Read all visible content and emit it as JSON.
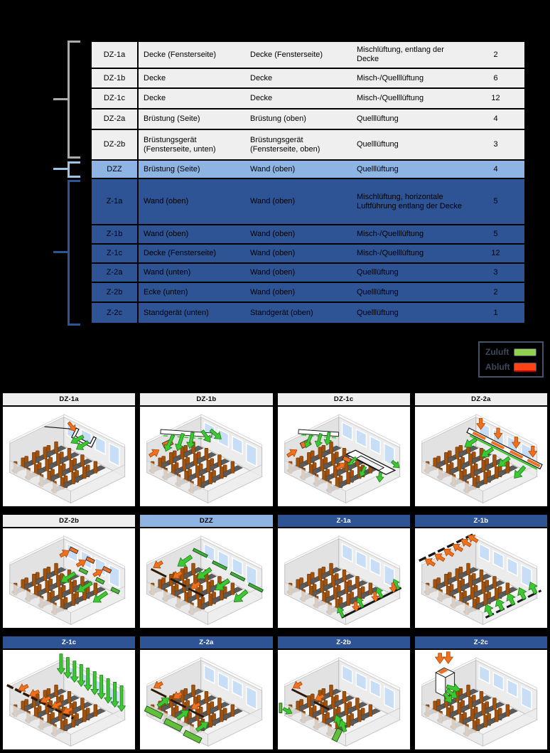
{
  "table": {
    "rows": [
      {
        "code": "DZ-1a",
        "col2": "Decke (Fensterseite)",
        "col3": "Decke (Fensterseite)",
        "col4": "Mischlüftung, entlang der Decke",
        "count": "2",
        "style": "gray"
      },
      {
        "code": "DZ-1b",
        "col2": "Decke",
        "col3": "Decke",
        "col4": "Misch-/Quelllüftung",
        "count": "6",
        "style": "gray"
      },
      {
        "code": "DZ-1c",
        "col2": "Decke",
        "col3": "Decke",
        "col4": "Misch-/Quelllüftung",
        "count": "12",
        "style": "gray"
      },
      {
        "code": "DZ-2a",
        "col2": "Brüstung (Seite)",
        "col3": "Brüstung (oben)",
        "col4": "Quelllüftung",
        "count": "4",
        "style": "gray"
      },
      {
        "code": "DZ-2b",
        "col2": "Brüstungsgerät (Fensterseite, unten)",
        "col3": "Brüstungsgerät (Fensterseite, oben)",
        "col4": "Quelllüftung",
        "count": "3",
        "style": "gray"
      },
      {
        "code": "DZZ",
        "col2": "Brüstung (Seite)",
        "col3": "Wand (oben)",
        "col4": "Quelllüftung",
        "count": "4",
        "style": "lightblue"
      },
      {
        "code": "Z-1a",
        "col2": "Wand (oben)",
        "col3": "Wand (oben)",
        "col4": "Mischlüftung, horizontale Luftführung entlang der Decke",
        "count": "5",
        "style": "blue"
      },
      {
        "code": "Z-1b",
        "col2": "Wand (oben)",
        "col3": "Wand (oben)",
        "col4": "Misch-/Quelllüftung",
        "count": "5",
        "style": "blue"
      },
      {
        "code": "Z-1c",
        "col2": "Decke (Fensterseite)",
        "col3": "Wand (oben)",
        "col4": "Misch-/Quelllüftung",
        "count": "12",
        "style": "blue"
      },
      {
        "code": "Z-2a",
        "col2": "Wand (unten)",
        "col3": "Wand (oben)",
        "col4": "Quelllüftung",
        "count": "3",
        "style": "blue"
      },
      {
        "code": "Z-2b",
        "col2": "Ecke (unten)",
        "col3": "Wand (oben)",
        "col4": "Quelllüftung",
        "count": "2",
        "style": "blue"
      },
      {
        "code": "Z-2c",
        "col2": "Standgerät (unten)",
        "col3": "Standgerät (oben)",
        "col4": "Quelllüftung",
        "count": "1",
        "style": "blue"
      }
    ]
  },
  "legend": {
    "supply_label": "Zuluft",
    "extract_label": "Abluft",
    "supply_color": "#92D050",
    "extract_color": "#FF4313"
  },
  "grid": {
    "cells": [
      {
        "code": "DZ-1a",
        "style": "gray"
      },
      {
        "code": "DZ-1b",
        "style": "gray"
      },
      {
        "code": "DZ-1c",
        "style": "gray"
      },
      {
        "code": "DZ-2a",
        "style": "gray"
      },
      {
        "code": "DZ-2b",
        "style": "gray"
      },
      {
        "code": "DZZ",
        "style": "lightblue"
      },
      {
        "code": "Z-1a",
        "style": "blue"
      },
      {
        "code": "Z-1b",
        "style": "blue"
      },
      {
        "code": "Z-1c",
        "style": "blue"
      },
      {
        "code": "Z-2a",
        "style": "blue"
      },
      {
        "code": "Z-2b",
        "style": "blue"
      },
      {
        "code": "Z-2c",
        "style": "blue"
      }
    ],
    "arrow_colors": {
      "supply": "#3CC832",
      "extract": "#F07020"
    }
  }
}
